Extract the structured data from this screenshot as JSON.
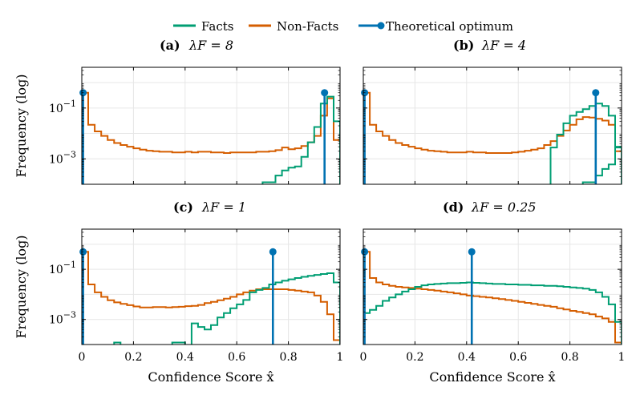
{
  "legend": [
    {
      "name": "Facts",
      "color": "#009e73",
      "marker": false
    },
    {
      "name": "Non-Facts",
      "color": "#d55e00",
      "marker": false
    },
    {
      "name": "Theoretical optimum",
      "color": "#0072b2",
      "marker": true
    }
  ],
  "axis_labels": {
    "ylabel": "Frequency (log)",
    "xlabel": "Confidence Score x̂"
  },
  "chart_data": [
    {
      "type": "histogram",
      "title_letter": "(a)",
      "title_param": "λF = 8",
      "x_range": [
        0,
        1
      ],
      "y_scale": "log",
      "y_range": [
        0.0001,
        4
      ],
      "ytick_labels": [
        "10^-1",
        "10^-3"
      ],
      "ytick_values": [
        0.1,
        0.001
      ],
      "xtick_labels": [],
      "grid": true,
      "bins": 40,
      "series": [
        {
          "name": "Non-Facts",
          "color": "#d55e00",
          "values": [
            0.4,
            0.022,
            0.012,
            0.008,
            0.0055,
            0.0042,
            0.0035,
            0.003,
            0.0026,
            0.0023,
            0.0021,
            0.002,
            0.0019,
            0.0019,
            0.0018,
            0.0018,
            0.0019,
            0.0018,
            0.0019,
            0.0019,
            0.0018,
            0.0018,
            0.0017,
            0.0018,
            0.0018,
            0.0018,
            0.0018,
            0.0019,
            0.0019,
            0.002,
            0.0022,
            0.0028,
            0.0024,
            0.0026,
            0.0032,
            0.0045,
            0.008,
            0.05,
            0.24,
            0.0055
          ]
        },
        {
          "name": "Facts",
          "color": "#009e73",
          "values": [
            null,
            null,
            null,
            null,
            null,
            null,
            null,
            null,
            null,
            null,
            null,
            null,
            null,
            null,
            null,
            null,
            null,
            null,
            null,
            null,
            null,
            null,
            null,
            null,
            null,
            null,
            null,
            null,
            0.00012,
            0.00012,
            0.00022,
            0.00035,
            0.00045,
            0.0005,
            0.0012,
            0.0045,
            0.018,
            0.15,
            0.28,
            0.03
          ]
        }
      ],
      "optimum": [
        {
          "x": 0.005,
          "y": 0.4
        },
        {
          "x": 0.94,
          "y": 0.4
        }
      ]
    },
    {
      "type": "histogram",
      "title_letter": "(b)",
      "title_param": "λF = 4",
      "x_range": [
        0,
        1
      ],
      "y_scale": "log",
      "y_range": [
        0.0001,
        4
      ],
      "ytick_labels": [
        "10^-1",
        "10^-3"
      ],
      "ytick_values": [
        0.1,
        0.001
      ],
      "xtick_labels": [],
      "grid": true,
      "bins": 40,
      "series": [
        {
          "name": "Non-Facts",
          "color": "#d55e00",
          "values": [
            0.4,
            0.022,
            0.012,
            0.008,
            0.0055,
            0.0042,
            0.0035,
            0.003,
            0.0026,
            0.0023,
            0.0021,
            0.002,
            0.0019,
            0.0018,
            0.0018,
            0.0018,
            0.0019,
            0.0018,
            0.0018,
            0.0017,
            0.0017,
            0.0017,
            0.0017,
            0.0018,
            0.0019,
            0.0021,
            0.0023,
            0.0026,
            0.0035,
            0.005,
            0.008,
            0.013,
            0.022,
            0.036,
            0.044,
            0.042,
            0.038,
            0.032,
            0.022,
            0.002
          ]
        },
        {
          "name": "Facts",
          "color": "#009e73",
          "values": [
            null,
            null,
            null,
            null,
            null,
            null,
            null,
            null,
            null,
            null,
            null,
            null,
            null,
            null,
            null,
            null,
            null,
            null,
            null,
            null,
            null,
            null,
            null,
            null,
            null,
            null,
            null,
            null,
            null,
            null,
            null,
            null,
            null,
            null,
            0.00012,
            0.00012,
            0.00022,
            0.0004,
            0.0006,
            0.0028
          ]
        }
      ],
      "facts_high": [
        0.0028,
        0.009,
        0.025,
        0.05,
        0.07,
        0.09,
        0.12,
        0.15,
        0.12,
        0.05,
        0.003
      ],
      "optimum": [
        {
          "x": 0.005,
          "y": 0.4
        },
        {
          "x": 0.9,
          "y": 0.4
        }
      ]
    },
    {
      "type": "histogram",
      "title_letter": "(c)",
      "title_param": "λF = 1",
      "x_range": [
        0,
        1
      ],
      "y_scale": "log",
      "y_range": [
        0.0001,
        4
      ],
      "ytick_labels": [
        "10^-1",
        "10^-3"
      ],
      "ytick_values": [
        0.1,
        0.001
      ],
      "xtick_labels": [
        "0",
        "0.2",
        "0.4",
        "0.6",
        "0.8",
        "1"
      ],
      "grid": true,
      "bins": 40,
      "series": [
        {
          "name": "Non-Facts",
          "color": "#d55e00",
          "values": [
            0.5,
            0.025,
            0.012,
            0.008,
            0.0058,
            0.0048,
            0.0042,
            0.0037,
            0.0033,
            0.003,
            0.003,
            0.0031,
            0.0031,
            0.003,
            0.0031,
            0.0032,
            0.0034,
            0.0035,
            0.0038,
            0.0045,
            0.005,
            0.0058,
            0.0068,
            0.008,
            0.01,
            0.012,
            0.014,
            0.016,
            0.016,
            0.016,
            0.016,
            0.016,
            0.015,
            0.014,
            0.013,
            0.012,
            0.009,
            0.005,
            0.0016,
            0.00015
          ]
        },
        {
          "name": "Facts",
          "color": "#009e73",
          "values": [
            null,
            null,
            null,
            null,
            null,
            0.00012,
            null,
            null,
            null,
            null,
            null,
            null,
            null,
            null,
            0.00012,
            0.00012,
            null,
            0.0007,
            0.0005,
            0.0004,
            0.0006,
            0.0012,
            0.0018,
            0.0028,
            0.004,
            0.006,
            0.012,
            0.015,
            0.018,
            0.025,
            0.03,
            0.035,
            0.04,
            0.045,
            0.05,
            0.055,
            0.06,
            0.065,
            0.07,
            0.03
          ]
        }
      ],
      "optimum": [
        {
          "x": 0.005,
          "y": 0.5
        },
        {
          "x": 0.74,
          "y": 0.5
        }
      ]
    },
    {
      "type": "histogram",
      "title_letter": "(d)",
      "title_param": "λF = 0.25",
      "x_range": [
        0,
        1
      ],
      "y_scale": "log",
      "y_range": [
        0.0001,
        4
      ],
      "ytick_labels": [
        "10^-1",
        "10^-3"
      ],
      "ytick_values": [
        0.1,
        0.001
      ],
      "xtick_labels": [
        "0",
        "0.2",
        "0.4",
        "0.6",
        "0.8",
        "1"
      ],
      "grid": true,
      "bins": 40,
      "series": [
        {
          "name": "Non-Facts",
          "color": "#d55e00",
          "values": [
            0.5,
            0.045,
            0.03,
            0.025,
            0.022,
            0.02,
            0.019,
            0.018,
            0.017,
            0.016,
            0.015,
            0.014,
            0.013,
            0.012,
            0.011,
            0.01,
            0.009,
            0.0085,
            0.008,
            0.0075,
            0.007,
            0.0065,
            0.006,
            0.0055,
            0.005,
            0.0046,
            0.0042,
            0.0038,
            0.0035,
            0.0032,
            0.0028,
            0.0025,
            0.0022,
            0.002,
            0.0018,
            0.0016,
            0.0013,
            0.0011,
            0.0008,
            0.00012
          ]
        },
        {
          "name": "Facts",
          "color": "#009e73",
          "values": [
            0.0018,
            0.0024,
            0.0035,
            0.0055,
            0.0075,
            0.01,
            0.013,
            0.016,
            0.02,
            0.023,
            0.025,
            0.026,
            0.027,
            0.028,
            0.028,
            0.029,
            0.03,
            0.029,
            0.028,
            0.027,
            0.026,
            0.026,
            0.025,
            0.025,
            0.024,
            0.024,
            0.023,
            0.023,
            0.022,
            0.022,
            0.021,
            0.02,
            0.019,
            0.018,
            0.017,
            0.015,
            0.012,
            0.008,
            0.004,
            0.0008
          ]
        }
      ],
      "optimum": [
        {
          "x": 0.005,
          "y": 0.5
        },
        {
          "x": 0.42,
          "y": 0.5
        }
      ]
    }
  ]
}
